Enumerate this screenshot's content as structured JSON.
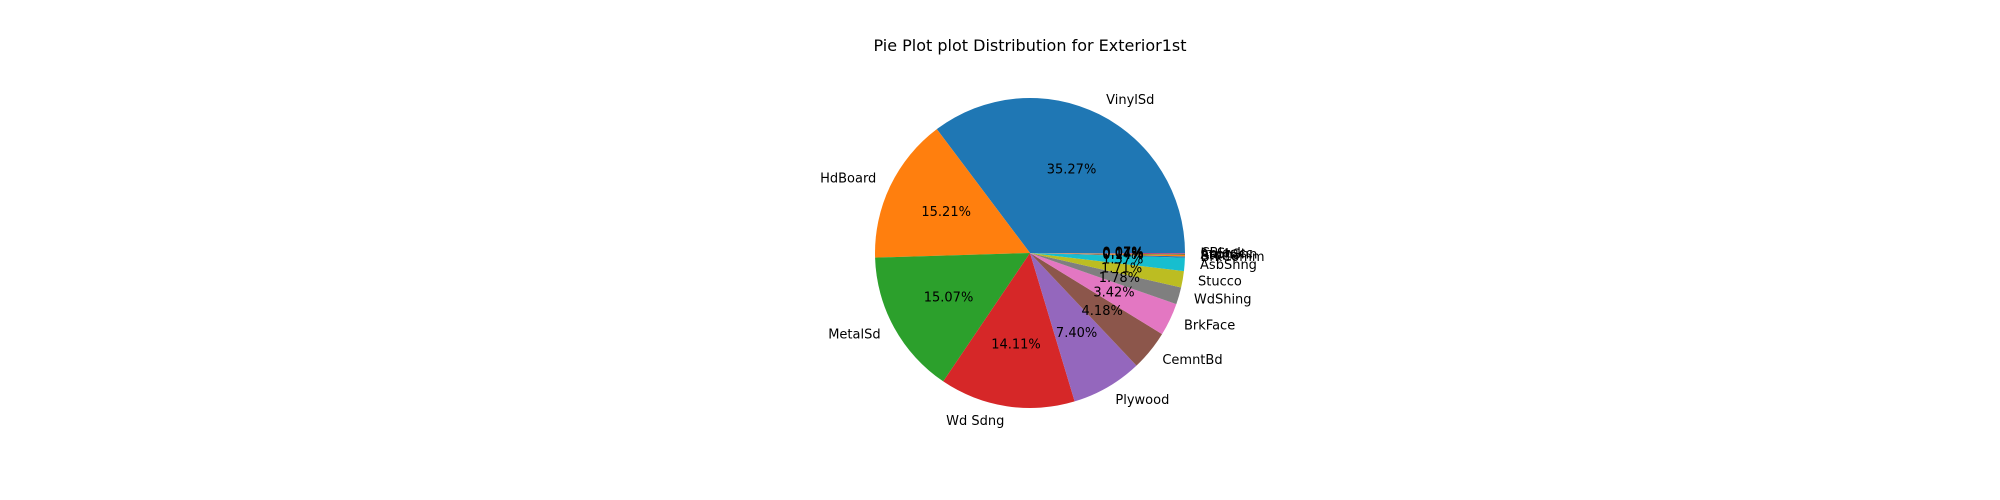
{
  "chart_data": {
    "type": "pie",
    "title": "Pie Plot plot Distribution for Exterior1st",
    "slices": [
      {
        "label": "VinylSd",
        "value": 35.27,
        "pct_text": "35.27%",
        "color": "#1f77b4"
      },
      {
        "label": "HdBoard",
        "value": 15.21,
        "pct_text": "15.21%",
        "color": "#ff7f0e"
      },
      {
        "label": "MetalSd",
        "value": 15.07,
        "pct_text": "15.07%",
        "color": "#2ca02c"
      },
      {
        "label": "Wd Sdng",
        "value": 14.11,
        "pct_text": "14.11%",
        "color": "#d62728"
      },
      {
        "label": "Plywood",
        "value": 7.4,
        "pct_text": "7.40%",
        "color": "#9467bd"
      },
      {
        "label": "CemntBd",
        "value": 4.18,
        "pct_text": "4.18%",
        "color": "#8c564b"
      },
      {
        "label": "BrkFace",
        "value": 3.42,
        "pct_text": "3.42%",
        "color": "#e377c2"
      },
      {
        "label": "WdShing",
        "value": 1.78,
        "pct_text": "1.78%",
        "color": "#7f7f7f"
      },
      {
        "label": "Stucco",
        "value": 1.71,
        "pct_text": "1.71%",
        "color": "#bcbd22"
      },
      {
        "label": "AsbShng",
        "value": 1.37,
        "pct_text": "1.37%",
        "color": "#17becf"
      },
      {
        "label": "BrkComm",
        "value": 0.14,
        "pct_text": "0.14%",
        "color": "#1f77b4"
      },
      {
        "label": "Stone",
        "value": 0.14,
        "pct_text": "0.14%",
        "color": "#ff7f0e"
      },
      {
        "label": "AsphShn",
        "value": 0.07,
        "pct_text": "0.07%",
        "color": "#2ca02c"
      },
      {
        "label": "ImStucc",
        "value": 0.07,
        "pct_text": "0.07%",
        "color": "#d62728"
      },
      {
        "label": "CBlock",
        "value": 0.07,
        "pct_text": "0.07%",
        "color": "#9467bd"
      }
    ]
  }
}
